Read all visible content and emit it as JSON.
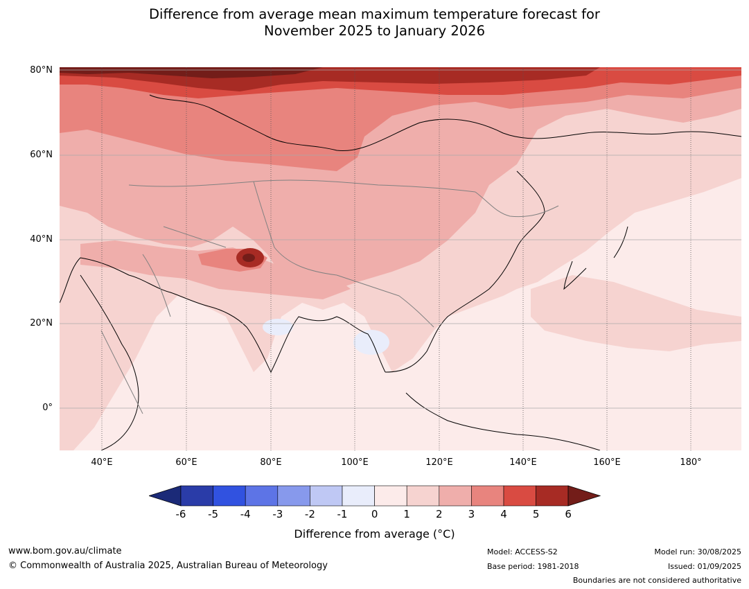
{
  "title_line1": "Difference from average mean maximum temperature forecast for",
  "title_line2": "November 2025 to January 2026",
  "map": {
    "lat_labels": [
      "80°N",
      "60°N",
      "40°N",
      "20°N",
      "0°"
    ],
    "lon_labels": [
      "40°E",
      "60°E",
      "80°E",
      "100°E",
      "120°E",
      "140°E",
      "160°E",
      "180°"
    ],
    "lat_range": [
      -10,
      80
    ],
    "lon_range": [
      30,
      191
    ],
    "colors": {
      "ocean_base": "#fcebea",
      "land_base": "#f6d3d0",
      "warm2": "#efaeab",
      "warm3": "#e8847e",
      "warm4": "#d94b42",
      "warm5": "#a72b24",
      "warm6": "#731d19",
      "cool1": "#e9edfb"
    }
  },
  "colorbar": {
    "ticks": [
      "-6",
      "-5",
      "-4",
      "-3",
      "-2",
      "-1",
      "0",
      "1",
      "2",
      "3",
      "4",
      "5",
      "6"
    ],
    "colors": [
      "#2a3ca8",
      "#3152e0",
      "#5d74e6",
      "#8799ec",
      "#bfc8f4",
      "#e9edfb",
      "#fcebea",
      "#f6d3d0",
      "#efaeab",
      "#e8847e",
      "#d94b42",
      "#a72b24"
    ],
    "under_color": "#1b2a78",
    "over_color": "#731d19",
    "label": "Difference from average (°C)"
  },
  "footer": {
    "website": "www.bom.gov.au/climate",
    "copyright": "© Commonwealth of Australia 2025, Australian Bureau of Meteorology",
    "model": "Model: ACCESS-S2",
    "base_period": "Base period: 1981-2018",
    "model_run": "Model run: 30/08/2025",
    "issued": "Issued: 01/09/2025",
    "disclaimer": "Boundaries are not considered authoritative"
  }
}
